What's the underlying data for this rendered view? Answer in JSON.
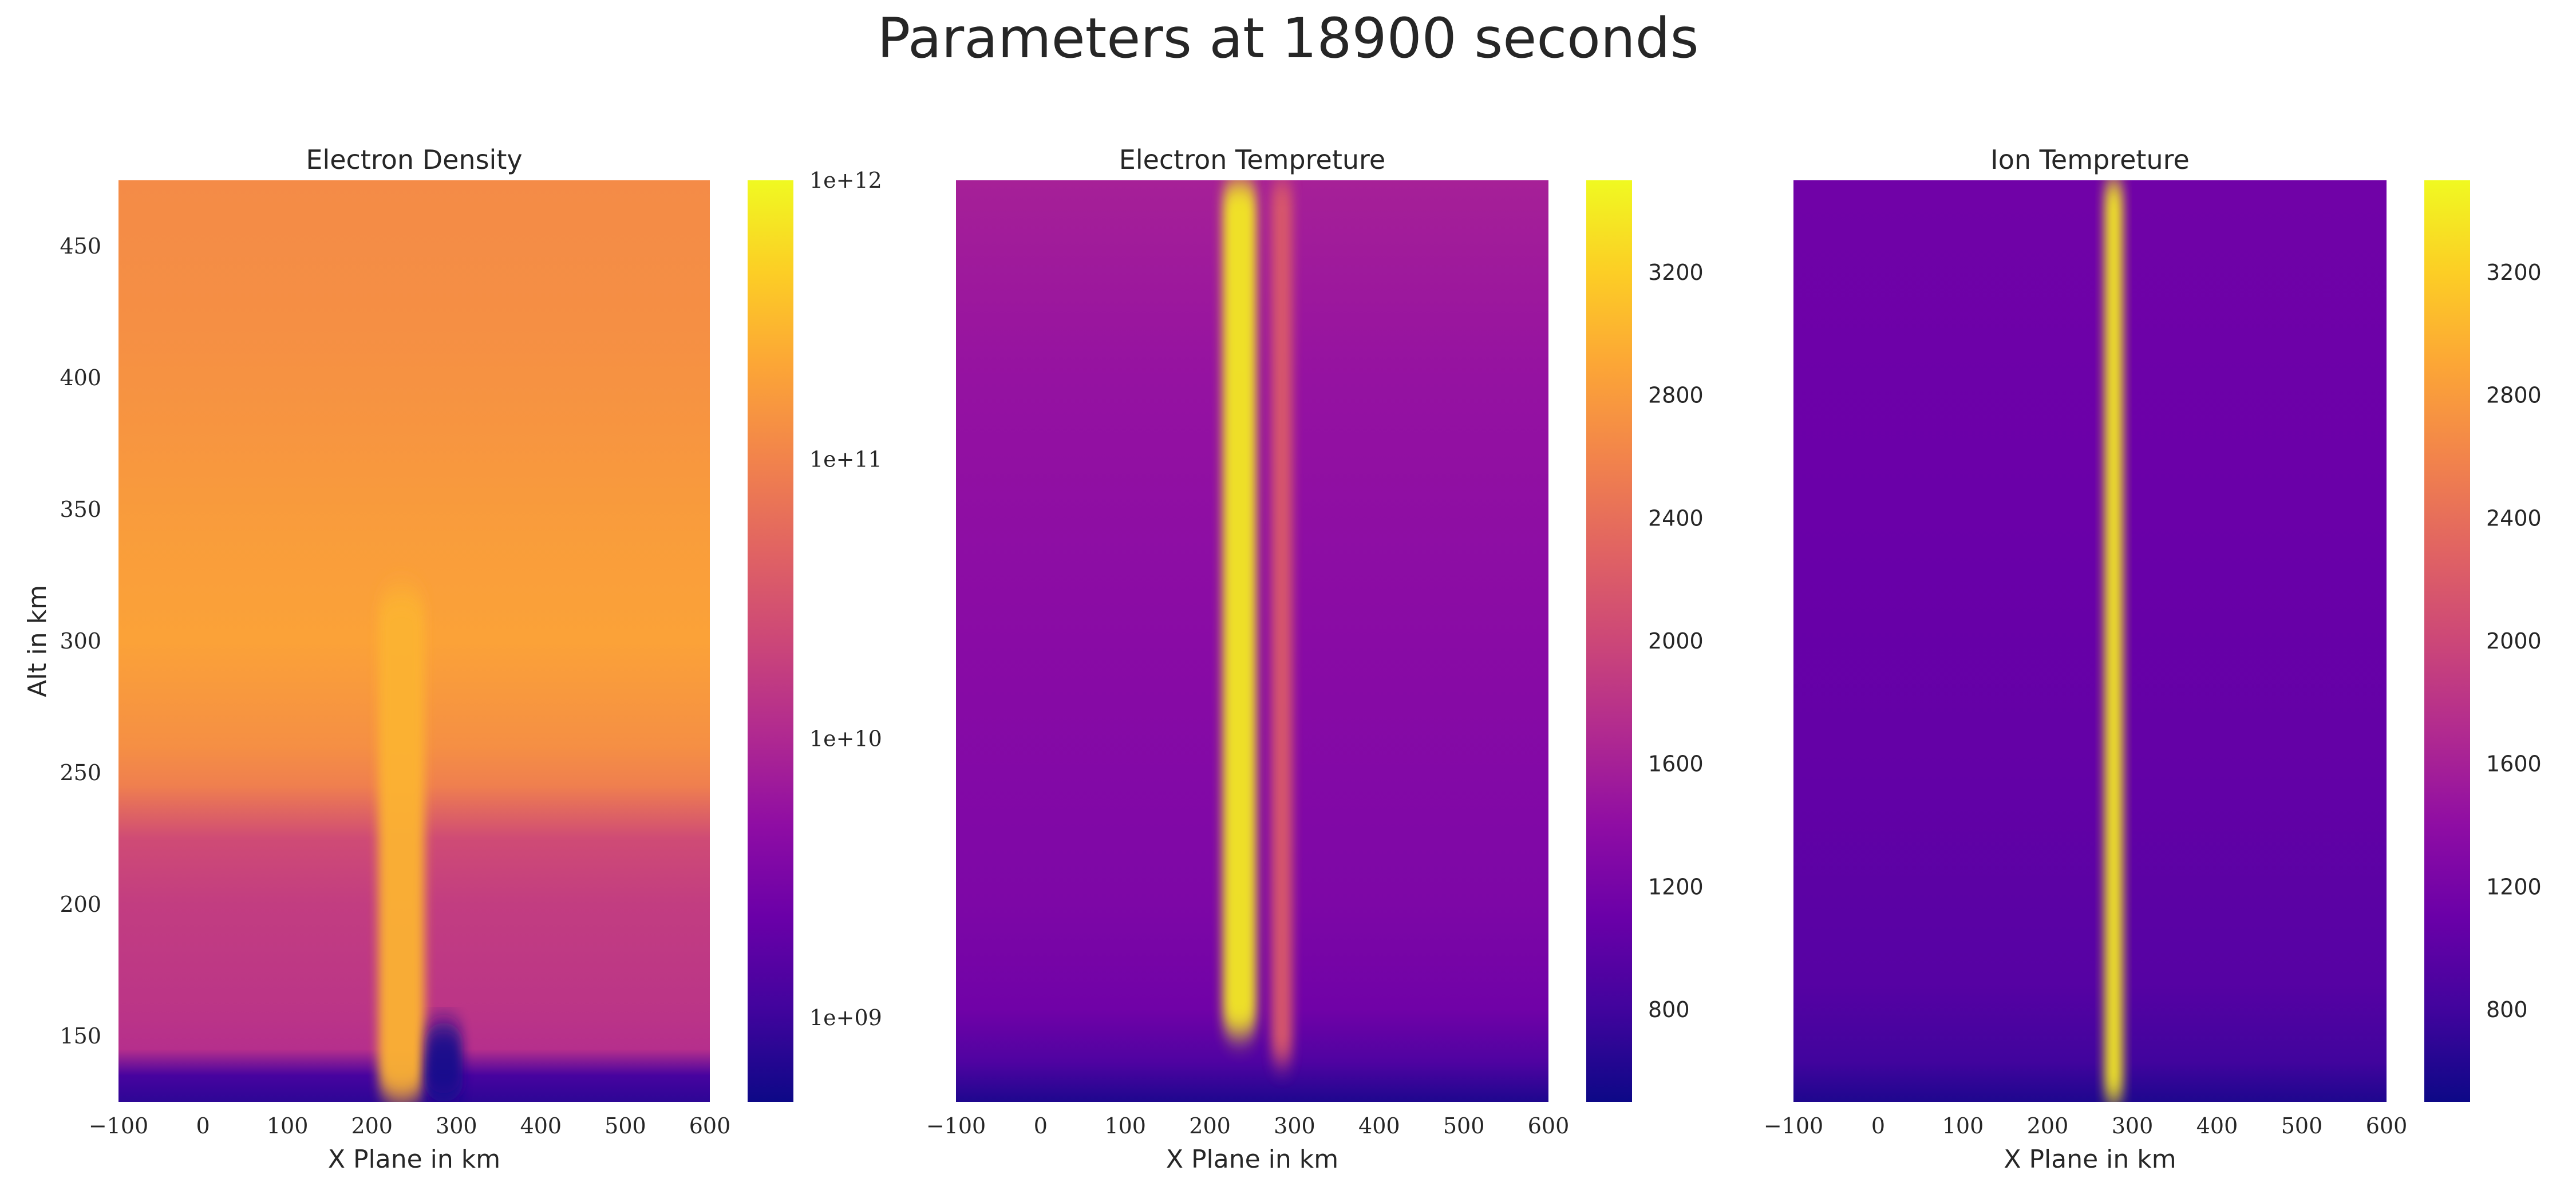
{
  "figure": {
    "title": "Parameters at 18900 seconds"
  },
  "colormap": "plasma",
  "chart_data": [
    {
      "type": "heatmap",
      "title": "Electron Density",
      "xlabel": "X Plane in km",
      "ylabel": "Alt in km",
      "xlim": [
        -100,
        600
      ],
      "ylim": [
        125,
        475
      ],
      "x_ticks": [
        "−100",
        "0",
        "100",
        "200",
        "300",
        "400",
        "500",
        "600"
      ],
      "x_tick_values": [
        -100,
        0,
        100,
        200,
        300,
        400,
        500,
        600
      ],
      "y_ticks": [
        "150",
        "200",
        "250",
        "300",
        "350",
        "400",
        "450"
      ],
      "y_tick_values": [
        150,
        200,
        250,
        300,
        350,
        400,
        450
      ],
      "colorbar": {
        "scale": "log",
        "min": 500000000,
        "max": 1000000000000,
        "tick_labels": [
          "1e+09",
          "1e+10",
          "1e+11",
          "1e+12"
        ],
        "tick_values": [
          1000000000,
          10000000000,
          100000000000,
          1000000000000
        ]
      },
      "background_profile": {
        "altitude_km": [
          125,
          135,
          145,
          160,
          200,
          225,
          245,
          260,
          300,
          340,
          380,
          420,
          475
        ],
        "value": [
          800000000,
          1200000000,
          12000000000,
          14000000000,
          17000000000,
          25000000000,
          90000000000,
          130000000000,
          200000000000,
          180000000000,
          150000000000,
          130000000000,
          120000000000
        ]
      },
      "features": [
        {
          "x_center_km": 235,
          "x_width_km": 55,
          "alt_min_km": 125,
          "alt_max_km": 320,
          "value": 280000000000
        },
        {
          "x_center_km": 285,
          "x_width_km": 45,
          "alt_min_km": 125,
          "alt_max_km": 155,
          "value": 600000000
        }
      ]
    },
    {
      "type": "heatmap",
      "title": "Electron Tempreture",
      "xlabel": "X Plane in km",
      "ylabel": "",
      "xlim": [
        -100,
        600
      ],
      "ylim": [
        125,
        475
      ],
      "x_ticks": [
        "−100",
        "0",
        "100",
        "200",
        "300",
        "400",
        "500",
        "600"
      ],
      "x_tick_values": [
        -100,
        0,
        100,
        200,
        300,
        400,
        500,
        600
      ],
      "y_ticks": [],
      "colorbar": {
        "scale": "linear",
        "min": 500,
        "max": 3500,
        "tick_labels": [
          "800",
          "1200",
          "1600",
          "2000",
          "2400",
          "2800",
          "3200"
        ],
        "tick_values": [
          800,
          1200,
          1600,
          2000,
          2400,
          2800,
          3200
        ]
      },
      "background_profile": {
        "altitude_km": [
          125,
          140,
          160,
          200,
          300,
          400,
          475
        ],
        "value": [
          600,
          900,
          1150,
          1250,
          1350,
          1450,
          1600
        ]
      },
      "features": [
        {
          "x_center_km": 235,
          "x_width_km": 40,
          "alt_min_km": 150,
          "alt_max_km": 475,
          "value": 3400
        },
        {
          "x_center_km": 285,
          "x_width_km": 25,
          "alt_min_km": 140,
          "alt_max_km": 475,
          "value": 2200
        }
      ]
    },
    {
      "type": "heatmap",
      "title": "Ion Tempreture",
      "xlabel": "X Plane in km",
      "ylabel": "",
      "xlim": [
        -100,
        600
      ],
      "ylim": [
        125,
        475
      ],
      "x_ticks": [
        "−100",
        "0",
        "100",
        "200",
        "300",
        "400",
        "500",
        "600"
      ],
      "x_tick_values": [
        -100,
        0,
        100,
        200,
        300,
        400,
        500,
        600
      ],
      "y_ticks": [],
      "colorbar": {
        "scale": "linear",
        "min": 500,
        "max": 3500,
        "tick_labels": [
          "800",
          "1200",
          "1600",
          "2000",
          "2400",
          "2800",
          "3200"
        ],
        "tick_values": [
          800,
          1200,
          1600,
          2000,
          2400,
          2800,
          3200
        ]
      },
      "background_profile": {
        "altitude_km": [
          125,
          140,
          170,
          250,
          350,
          475
        ],
        "value": [
          600,
          800,
          950,
          1050,
          1100,
          1150
        ]
      },
      "features": [
        {
          "x_center_km": 278,
          "x_width_km": 22,
          "alt_min_km": 125,
          "alt_max_km": 475,
          "value": 3400
        }
      ]
    }
  ]
}
